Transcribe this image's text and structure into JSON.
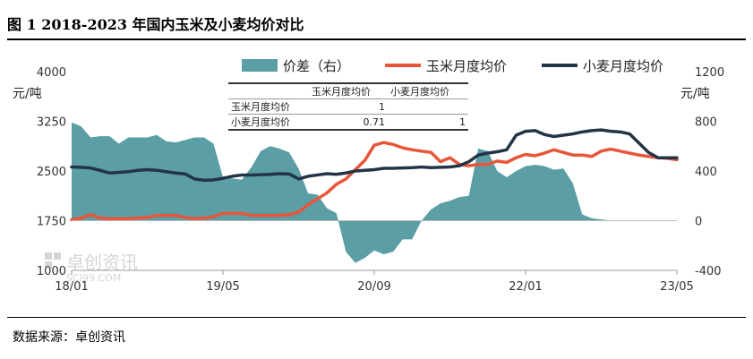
{
  "header": {
    "title": "图 1 2018-2023 年国内玉米及小麦均价对比"
  },
  "footer": {
    "source": "数据来源：卓创资讯"
  },
  "watermark": {
    "name": "卓创资讯",
    "site": "SCI99.COM"
  },
  "correlation_table": {
    "header": [
      "",
      "玉米月度均价",
      "小麦月度均价"
    ],
    "rows": [
      [
        "玉米月度均价",
        "1",
        ""
      ],
      [
        "小麦月度均价",
        "0.71",
        "1"
      ]
    ]
  },
  "chart_data": {
    "type": "line",
    "x_labels": [
      "18/01",
      "19/05",
      "20/09",
      "22/01",
      "23/05"
    ],
    "x": [
      "18/01",
      "18/02",
      "18/03",
      "18/04",
      "18/05",
      "18/06",
      "18/07",
      "18/08",
      "18/09",
      "18/10",
      "18/11",
      "18/12",
      "19/01",
      "19/02",
      "19/03",
      "19/04",
      "19/05",
      "19/06",
      "19/07",
      "19/08",
      "19/09",
      "19/10",
      "19/11",
      "19/12",
      "20/01",
      "20/02",
      "20/03",
      "20/04",
      "20/05",
      "20/06",
      "20/07",
      "20/08",
      "20/09",
      "20/10",
      "20/11",
      "20/12",
      "21/01",
      "21/02",
      "21/03",
      "21/04",
      "21/05",
      "21/06",
      "21/07",
      "21/08",
      "21/09",
      "21/10",
      "21/11",
      "21/12",
      "22/01",
      "22/02",
      "22/03",
      "22/04",
      "22/05",
      "22/06",
      "22/07",
      "22/08",
      "22/09",
      "22/10",
      "22/11",
      "22/12",
      "23/01",
      "23/02",
      "23/03",
      "23/04",
      "23/05"
    ],
    "left_axis": {
      "unit": "元/吨",
      "ylim": [
        1000,
        4000
      ],
      "ticks": [
        1000,
        1750,
        2500,
        3250,
        4000
      ]
    },
    "right_axis": {
      "unit": "元/吨",
      "ylim": [
        -400,
        1200
      ],
      "ticks": [
        -400,
        0,
        400,
        800,
        1200
      ]
    },
    "series": [
      {
        "name": "价差（右）",
        "type": "area",
        "axis": "right",
        "color": "#5b9ea6",
        "values": [
          790,
          760,
          670,
          680,
          680,
          620,
          670,
          670,
          670,
          690,
          640,
          630,
          650,
          670,
          670,
          620,
          350,
          340,
          330,
          430,
          560,
          600,
          580,
          550,
          420,
          220,
          210,
          100,
          60,
          -250,
          -340,
          -300,
          -240,
          -270,
          -250,
          -150,
          -150,
          0,
          90,
          140,
          160,
          190,
          200,
          580,
          560,
          400,
          350,
          400,
          440,
          450,
          440,
          410,
          420,
          300,
          50,
          20,
          10,
          0,
          0,
          0,
          0,
          0,
          0,
          0,
          0
        ]
      },
      {
        "name": "玉米月度均价",
        "type": "line",
        "axis": "left",
        "color": "#e8563a",
        "values": [
          1765,
          1790,
          1840,
          1790,
          1780,
          1780,
          1780,
          1790,
          1800,
          1830,
          1830,
          1830,
          1800,
          1780,
          1790,
          1810,
          1860,
          1860,
          1860,
          1830,
          1830,
          1830,
          1830,
          1840,
          1880,
          1990,
          2080,
          2170,
          2300,
          2380,
          2520,
          2660,
          2890,
          2930,
          2900,
          2850,
          2820,
          2800,
          2780,
          2640,
          2700,
          2600,
          2580,
          2600,
          2600,
          2650,
          2630,
          2700,
          2750,
          2730,
          2770,
          2820,
          2780,
          2740,
          2740,
          2720,
          2800,
          2830,
          2800,
          2770,
          2740,
          2720,
          2700,
          2690,
          2670
        ]
      },
      {
        "name": "小麦月度均价",
        "type": "line",
        "axis": "left",
        "color": "#243447",
        "values": [
          2560,
          2555,
          2545,
          2510,
          2470,
          2480,
          2490,
          2510,
          2520,
          2510,
          2490,
          2470,
          2455,
          2380,
          2360,
          2365,
          2390,
          2420,
          2440,
          2440,
          2445,
          2450,
          2460,
          2455,
          2380,
          2420,
          2440,
          2460,
          2450,
          2470,
          2500,
          2510,
          2520,
          2540,
          2540,
          2545,
          2550,
          2560,
          2550,
          2555,
          2560,
          2580,
          2640,
          2740,
          2770,
          2790,
          2820,
          3040,
          3100,
          3110,
          3050,
          3020,
          3040,
          3060,
          3090,
          3110,
          3120,
          3100,
          3090,
          3060,
          2920,
          2780,
          2700,
          2700,
          2700
        ]
      }
    ]
  }
}
